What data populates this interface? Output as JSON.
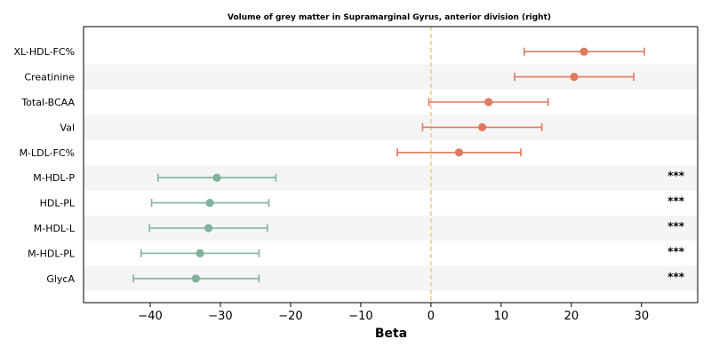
{
  "chart_data": {
    "type": "scatter",
    "subtype": "forest-plot",
    "title": "Volume of grey matter in Supramarginal Gyrus, anterior division (right)",
    "xlabel": "Beta",
    "ylabel": "",
    "xlim": [
      -49.5,
      38
    ],
    "xticks": [
      -40,
      -30,
      -20,
      -10,
      0,
      10,
      20,
      30
    ],
    "xtick_labels": [
      "−40",
      "−30",
      "−20",
      "−10",
      "0",
      "10",
      "20",
      "30"
    ],
    "reference_line": 0,
    "grid": false,
    "colors": {
      "positive": "#e07a5f",
      "negative": "#81b29a",
      "reference": "#f2cc8f",
      "band": "#f5f5f5"
    },
    "rows": [
      {
        "label": "XL-HDL-FC%",
        "beta": 21.8,
        "lo": 13.3,
        "hi": 30.4,
        "sig": ""
      },
      {
        "label": "Creatinine",
        "beta": 20.4,
        "lo": 11.9,
        "hi": 28.9,
        "sig": ""
      },
      {
        "label": "Total-BCAA",
        "beta": 8.2,
        "lo": -0.3,
        "hi": 16.7,
        "sig": ""
      },
      {
        "label": "Val",
        "beta": 7.3,
        "lo": -1.2,
        "hi": 15.8,
        "sig": ""
      },
      {
        "label": "M-LDL-FC%",
        "beta": 4.0,
        "lo": -4.8,
        "hi": 12.8,
        "sig": ""
      },
      {
        "label": "M-HDL-P",
        "beta": -30.5,
        "lo": -38.9,
        "hi": -22.1,
        "sig": "***"
      },
      {
        "label": "HDL-PL",
        "beta": -31.5,
        "lo": -39.8,
        "hi": -23.1,
        "sig": "***"
      },
      {
        "label": "M-HDL-L",
        "beta": -31.7,
        "lo": -40.1,
        "hi": -23.3,
        "sig": "***"
      },
      {
        "label": "M-HDL-PL",
        "beta": -32.9,
        "lo": -41.3,
        "hi": -24.5,
        "sig": "***"
      },
      {
        "label": "GlycA",
        "beta": -33.5,
        "lo": -42.4,
        "hi": -24.5,
        "sig": "***"
      }
    ]
  }
}
